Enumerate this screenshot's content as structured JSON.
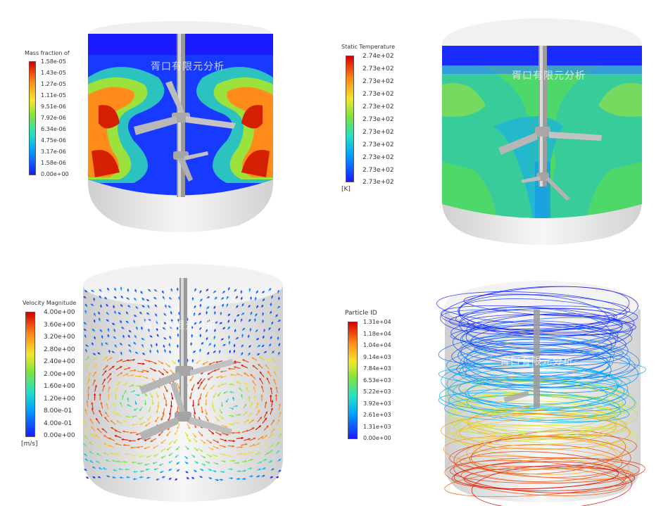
{
  "watermark": "胥口有限元分析",
  "panels": [
    {
      "name": "mass-fraction",
      "legend": {
        "title": "Mass fraction of",
        "unit": "",
        "ticks": [
          "1.58e-05",
          "1.43e-05",
          "1.27e-05",
          "1.11e-05",
          "9.51e-06",
          "7.92e-06",
          "6.34e-06",
          "4.75e-06",
          "3.17e-06",
          "1.58e-06",
          "0.00e+00"
        ]
      }
    },
    {
      "name": "static-temperature",
      "legend": {
        "title": "Static Temperature",
        "unit": "[K]",
        "ticks": [
          "2.74e+02",
          "2.73e+02",
          "2.73e+02",
          "2.73e+02",
          "2.73e+02",
          "2.73e+02",
          "2.73e+02",
          "2.73e+02",
          "2.73e+02",
          "2.73e+02",
          "2.73e+02"
        ]
      }
    },
    {
      "name": "velocity-magnitude",
      "legend": {
        "title": "Velocity Magnitude",
        "unit": "[m/s]",
        "ticks": [
          "4.00e+00",
          "3.60e+00",
          "3.20e+00",
          "2.80e+00",
          "2.40e+00",
          "2.00e+00",
          "1.60e+00",
          "1.20e+00",
          "8.00e-01",
          "4.00e-01",
          "0.00e+00"
        ]
      }
    },
    {
      "name": "particle-id",
      "legend": {
        "title": "Particle ID",
        "unit": "",
        "ticks": [
          "1.31e+04",
          "1.18e+04",
          "1.04e+04",
          "9.14e+03",
          "7.84e+03",
          "6.53e+03",
          "5.22e+03",
          "3.92e+03",
          "2.61e+03",
          "1.31e+03",
          "0.00e+00"
        ]
      }
    }
  ]
}
